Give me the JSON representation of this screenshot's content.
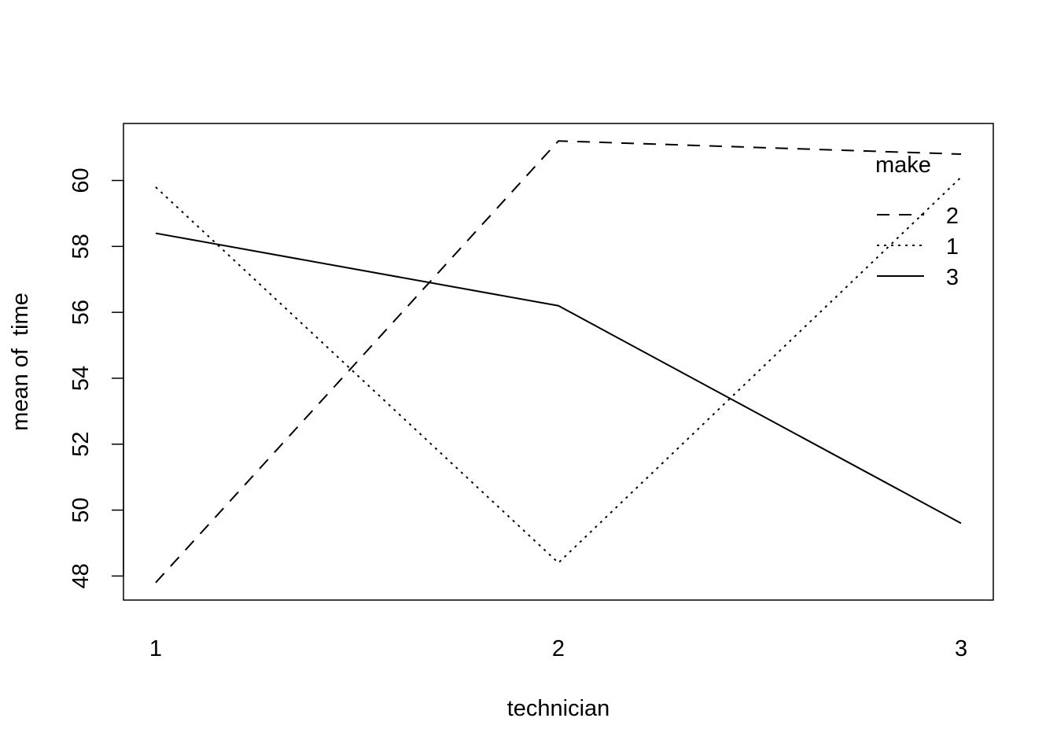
{
  "chart_data": {
    "type": "line",
    "title": "",
    "xlabel": "technician",
    "ylabel": "mean of  time",
    "categories": [
      "1",
      "2",
      "3"
    ],
    "yticks": [
      48,
      50,
      52,
      54,
      56,
      58,
      60
    ],
    "ylim": [
      47.27,
      61.73
    ],
    "grid": false,
    "legend": {
      "title": "make",
      "placement": "top-right"
    },
    "series": [
      {
        "name": "2",
        "linestyle": "dashed",
        "values": [
          47.8,
          61.2,
          60.8
        ]
      },
      {
        "name": "1",
        "linestyle": "dotted",
        "values": [
          59.8,
          48.4,
          60.1
        ]
      },
      {
        "name": "3",
        "linestyle": "solid",
        "values": [
          58.4,
          56.2,
          49.6
        ]
      }
    ],
    "colors": {
      "line": "#000000",
      "background": "#ffffff"
    }
  }
}
